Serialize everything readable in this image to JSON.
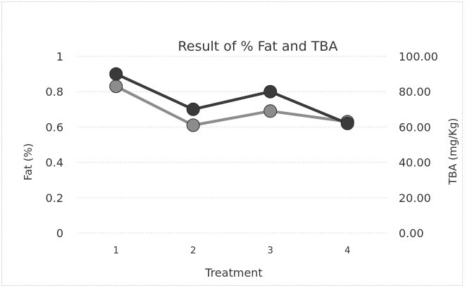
{
  "chart_data": {
    "type": "line",
    "title": "Result of % Fat and TBA",
    "xlabel": "Treatment",
    "ylabel": "Fat (%)",
    "y2label": "TBA (mg/Kg)",
    "categories": [
      "1",
      "2",
      "3",
      "4"
    ],
    "ylim": [
      0,
      1
    ],
    "y_ticks": [
      "0",
      "0.2",
      "0.4",
      "0.6",
      "0.8",
      "1"
    ],
    "y2lim": [
      0,
      100
    ],
    "y2_ticks": [
      "0.00",
      "20.00",
      "40.00",
      "60.00",
      "80.00",
      "100.00"
    ],
    "grid": true,
    "series": [
      {
        "axis": "left",
        "values": [
          0.9,
          0.7,
          0.8,
          0.62
        ],
        "color": "#3a3a3a"
      },
      {
        "axis": "right",
        "values": [
          83,
          61,
          69,
          63
        ],
        "color": "#8c8c8c"
      }
    ]
  }
}
